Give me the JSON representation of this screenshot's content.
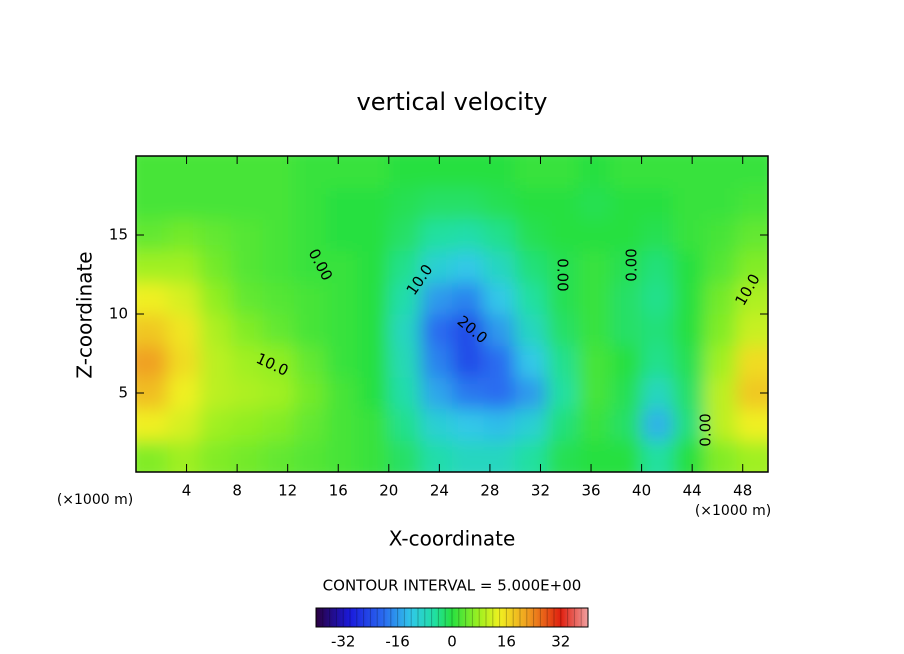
{
  "chart_data": {
    "type": "contour",
    "title": "vertical velocity",
    "xlabel": "X-coordinate",
    "ylabel": "Z-coordinate",
    "x_unit_label": "(×1000 m)",
    "xlim": [
      0,
      50
    ],
    "ylim": [
      0,
      20
    ],
    "xticks": [
      4,
      8,
      12,
      16,
      20,
      24,
      28,
      32,
      36,
      40,
      44,
      48
    ],
    "yticks": [
      5,
      10,
      15
    ],
    "grid": false,
    "x": [
      1.25,
      3.75,
      6.25,
      8.75,
      11.25,
      13.75,
      16.25,
      18.75,
      21.25,
      23.75,
      26.25,
      28.75,
      31.25,
      33.75,
      36.25,
      38.75,
      41.25,
      43.75,
      46.25,
      48.75
    ],
    "y": [
      1,
      3,
      5,
      7,
      9,
      11,
      13,
      15,
      17,
      19
    ],
    "z": [
      [
        6,
        8,
        6,
        5,
        4,
        3,
        2,
        1,
        -2,
        -6,
        -8,
        -8,
        -5,
        -1,
        0,
        0,
        -5,
        0,
        6,
        8
      ],
      [
        14,
        12,
        8,
        7,
        6,
        4,
        2,
        1,
        -4,
        -10,
        -12,
        -13,
        -10,
        -3,
        1,
        -2,
        -14,
        -3,
        10,
        14
      ],
      [
        19,
        14,
        10,
        9,
        8,
        5,
        2,
        0,
        -6,
        -15,
        -19,
        -20,
        -16,
        -5,
        2,
        -1,
        -8,
        -2,
        10,
        18
      ],
      [
        22,
        16,
        10,
        8,
        7,
        4,
        1,
        0,
        -7,
        -18,
        -24,
        -20,
        -12,
        -4,
        2,
        0,
        -4,
        -1,
        8,
        16
      ],
      [
        18,
        15,
        9,
        6,
        4,
        2,
        1,
        0,
        -8,
        -20,
        -24,
        -16,
        -8,
        -2,
        1,
        -2,
        -3,
        0,
        6,
        11
      ],
      [
        14,
        12,
        7,
        4,
        3,
        2,
        1,
        0,
        -6,
        -16,
        -18,
        -12,
        -5,
        -1,
        1,
        -2,
        -4,
        0,
        5,
        9
      ],
      [
        8,
        8,
        5,
        3,
        2,
        1,
        1,
        0,
        -4,
        -10,
        -12,
        -8,
        -3,
        -1,
        1,
        -1,
        -3,
        0,
        3,
        6
      ],
      [
        4,
        5,
        4,
        3,
        2,
        1,
        0,
        0,
        -2,
        -5,
        -6,
        -4,
        -1,
        0,
        0,
        0,
        -1,
        1,
        2,
        4
      ],
      [
        2,
        2,
        2,
        2,
        2,
        1,
        0,
        0,
        -1,
        -2,
        -2,
        -1,
        0,
        0,
        -1,
        0,
        0,
        1,
        1,
        2
      ],
      [
        2,
        2,
        2,
        2,
        2,
        1,
        1,
        1,
        0,
        0,
        0,
        0,
        1,
        1,
        0,
        1,
        1,
        1,
        1,
        1
      ]
    ],
    "colorscale": [
      [
        -40,
        "#2a0040"
      ],
      [
        -30,
        "#1a1adc"
      ],
      [
        -20,
        "#2a6cf0"
      ],
      [
        -12,
        "#30c8e8"
      ],
      [
        -5,
        "#20e0a0"
      ],
      [
        0,
        "#28e040"
      ],
      [
        8,
        "#a0f020"
      ],
      [
        14,
        "#f0f020"
      ],
      [
        22,
        "#f0a020"
      ],
      [
        32,
        "#e02010"
      ],
      [
        40,
        "#f0a0a0"
      ]
    ],
    "contour_labels": [
      "0.00",
      "10.0",
      "10.0",
      "20.0",
      "0.00",
      "0.00",
      "10.0",
      "0.00"
    ],
    "colorbar": {
      "title": "CONTOUR INTERVAL = 5.000E+00",
      "lim": [
        -40,
        40
      ],
      "ticks": [
        -32,
        -16,
        0,
        16,
        32
      ]
    }
  }
}
